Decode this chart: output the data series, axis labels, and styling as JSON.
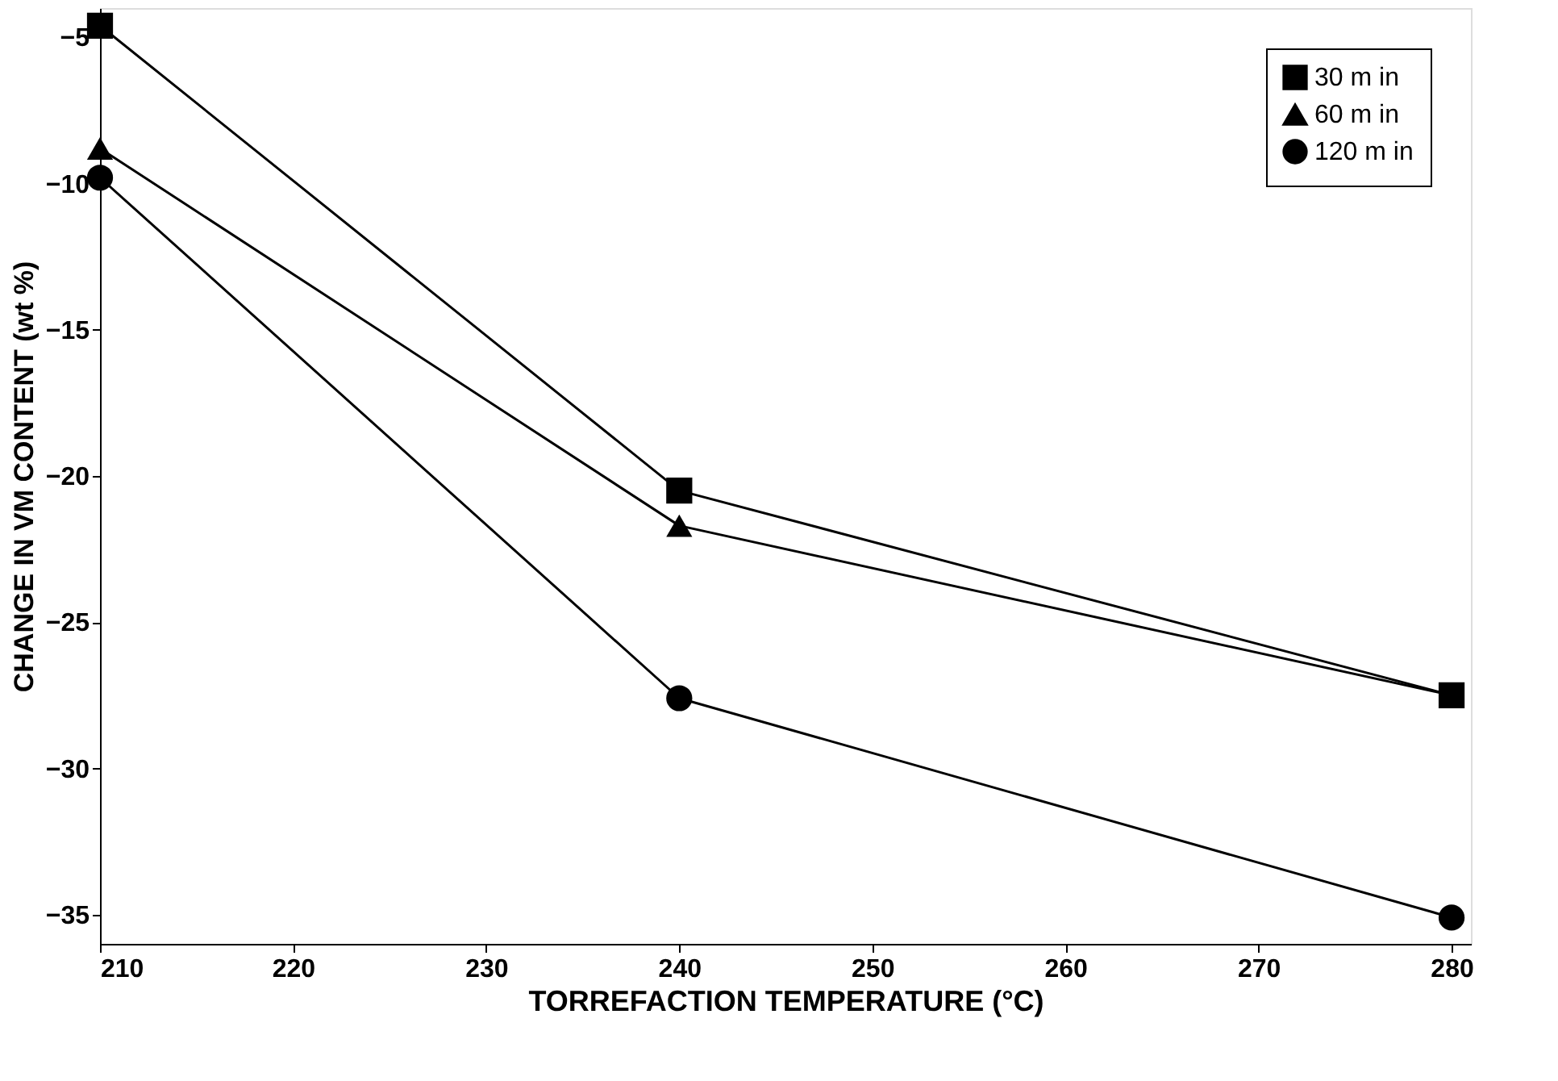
{
  "chart_data": {
    "type": "line",
    "xlabel": "TORREFACTION TEMPERATURE (°C)",
    "ylabel": "CHANGE IN VM CONTENT (wt %)",
    "x": [
      210,
      240,
      280
    ],
    "series": [
      {
        "name": "30 m in",
        "color": "#000000",
        "marker": "square",
        "values": [
          -4.6,
          -20.5,
          -27.5
        ]
      },
      {
        "name": "60 m in",
        "color": "#000000",
        "marker": "triangle",
        "values": [
          -8.8,
          -21.7,
          -27.5
        ]
      },
      {
        "name": "120 m in",
        "color": "#000000",
        "marker": "circle",
        "values": [
          -9.8,
          -27.6,
          -35.1
        ]
      }
    ],
    "xlim": [
      210,
      281
    ],
    "ylim": [
      -36,
      -4
    ],
    "xticks": [
      210,
      220,
      230,
      240,
      250,
      260,
      270,
      280
    ],
    "yticks": [
      -35,
      -30,
      -25,
      -20,
      -15,
      -10,
      -5
    ],
    "grid": false,
    "legend": "top right",
    "line_style": "solid"
  }
}
